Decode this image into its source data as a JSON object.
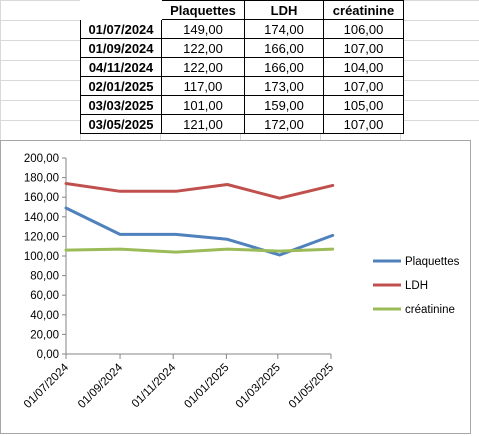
{
  "table": {
    "headers": [
      "",
      "Plaquettes",
      "LDH",
      "créatinine"
    ],
    "rows": [
      {
        "date": "01/07/2024",
        "plaquettes": "149,00",
        "ldh": "174,00",
        "creatinine": "106,00"
      },
      {
        "date": "01/09/2024",
        "plaquettes": "122,00",
        "ldh": "166,00",
        "creatinine": "107,00"
      },
      {
        "date": "04/11/2024",
        "plaquettes": "122,00",
        "ldh": "166,00",
        "creatinine": "104,00"
      },
      {
        "date": "02/01/2025",
        "plaquettes": "117,00",
        "ldh": "173,00",
        "creatinine": "107,00"
      },
      {
        "date": "03/03/2025",
        "plaquettes": "101,00",
        "ldh": "159,00",
        "creatinine": "105,00"
      },
      {
        "date": "03/05/2025",
        "plaquettes": "121,00",
        "ldh": "172,00",
        "creatinine": "107,00"
      }
    ]
  },
  "chart_data": {
    "type": "line",
    "x_type": "date",
    "x": [
      "2024-07-01",
      "2024-09-01",
      "2024-11-04",
      "2025-01-02",
      "2025-03-03",
      "2025-05-03"
    ],
    "x_tick_values": [
      "2024-07-01",
      "2024-09-01",
      "2024-11-01",
      "2025-01-01",
      "2025-03-01",
      "2025-05-01"
    ],
    "x_tick_labels": [
      "01/07/2024",
      "01/09/2024",
      "01/11/2024",
      "01/01/2025",
      "01/03/2025",
      "01/05/2025"
    ],
    "xlim": [
      "2024-07-01",
      "2025-05-01"
    ],
    "ylim": [
      0,
      200
    ],
    "y_ticks": [
      0,
      20,
      40,
      60,
      80,
      100,
      120,
      140,
      160,
      180,
      200
    ],
    "y_tick_labels": [
      "0,00",
      "20,00",
      "40,00",
      "60,00",
      "80,00",
      "100,00",
      "120,00",
      "140,00",
      "160,00",
      "180,00",
      "200,00"
    ],
    "grid": false,
    "legend": "right",
    "series": [
      {
        "name": "Plaquettes",
        "color": "#4f81bd",
        "values": [
          149,
          122,
          122,
          117,
          101,
          121
        ]
      },
      {
        "name": "LDH",
        "color": "#c0504d",
        "values": [
          174,
          166,
          166,
          173,
          159,
          172
        ]
      },
      {
        "name": "créatinine",
        "color": "#9bbb59",
        "values": [
          106,
          107,
          104,
          107,
          105,
          107
        ]
      }
    ]
  }
}
